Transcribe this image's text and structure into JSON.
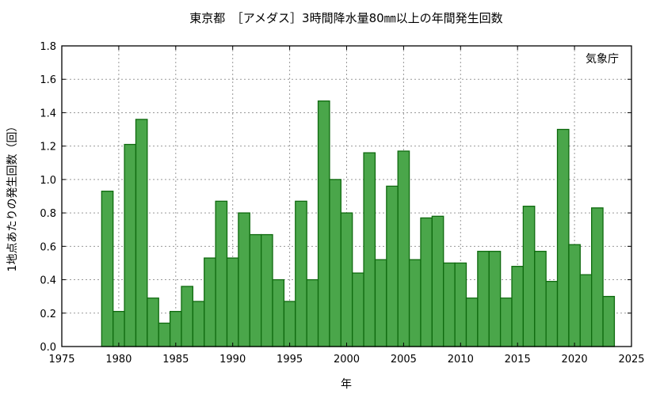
{
  "chart_data": {
    "type": "bar",
    "title": "東京都　［アメダス］3時間降水量80㎜以上の年間発生回数",
    "xlabel": "年",
    "ylabel": "1地点あたりの発生回数（回）",
    "source_note": "気象庁",
    "xlim": [
      1975,
      2025
    ],
    "ylim": [
      0,
      1.8
    ],
    "xticks": [
      1975,
      1980,
      1985,
      1990,
      1995,
      2000,
      2005,
      2010,
      2015,
      2020,
      2025
    ],
    "yticks": [
      "0.0",
      "0.2",
      "0.4",
      "0.6",
      "0.8",
      "1.0",
      "1.2",
      "1.4",
      "1.6",
      "1.8"
    ],
    "grid": true,
    "colors": {
      "bar_fill": "#4aa64a",
      "bar_edge": "#0f6a0f"
    },
    "x": [
      1979,
      1980,
      1981,
      1982,
      1983,
      1984,
      1985,
      1986,
      1987,
      1988,
      1989,
      1990,
      1991,
      1992,
      1993,
      1994,
      1995,
      1996,
      1997,
      1998,
      1999,
      2000,
      2001,
      2002,
      2003,
      2004,
      2005,
      2006,
      2007,
      2008,
      2009,
      2010,
      2011,
      2012,
      2013,
      2014,
      2015,
      2016,
      2017,
      2018,
      2019,
      2020,
      2021,
      2022,
      2023
    ],
    "values": [
      0.93,
      0.21,
      1.21,
      1.36,
      0.29,
      0.14,
      0.21,
      0.36,
      0.27,
      0.53,
      0.87,
      0.53,
      0.8,
      0.67,
      0.67,
      0.4,
      0.27,
      0.87,
      0.4,
      1.47,
      1.0,
      0.8,
      0.44,
      1.16,
      0.52,
      0.96,
      1.17,
      0.52,
      0.77,
      0.78,
      0.5,
      0.5,
      0.29,
      0.57,
      0.57,
      0.29,
      0.48,
      0.84,
      0.57,
      0.39,
      1.3,
      0.61,
      0.43,
      0.83,
      0.3
    ]
  }
}
